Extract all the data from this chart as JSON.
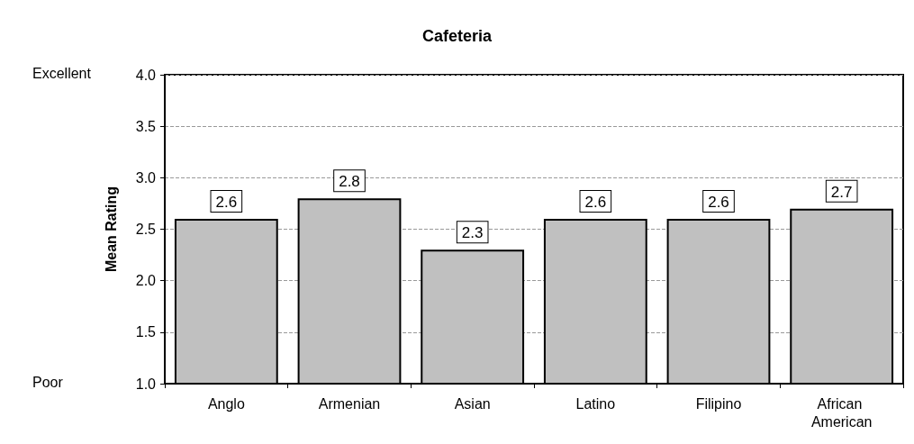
{
  "chart_data": {
    "type": "bar",
    "title": "Cafeteria",
    "ylabel": "Mean Rating",
    "categories": [
      "Anglo",
      "Armenian",
      "Asian",
      "Latino",
      "Filipino",
      "African American"
    ],
    "values": [
      2.6,
      2.8,
      2.3,
      2.6,
      2.6,
      2.7
    ],
    "color": "#c0c0c0",
    "ylim": [
      1,
      4
    ],
    "yticks": [
      {
        "value": 1,
        "label": "1.0"
      },
      {
        "value": 1.5,
        "label": "1.5"
      },
      {
        "value": 2,
        "label": "2.0"
      },
      {
        "value": 2.5,
        "label": "2.5"
      },
      {
        "value": 3,
        "label": "3.0"
      },
      {
        "value": 3.5,
        "label": "3.5"
      },
      {
        "value": 4,
        "label": "4.0"
      }
    ],
    "grid": "y",
    "data_labels": true,
    "annotations": [
      "Excellent",
      "Poor"
    ]
  }
}
